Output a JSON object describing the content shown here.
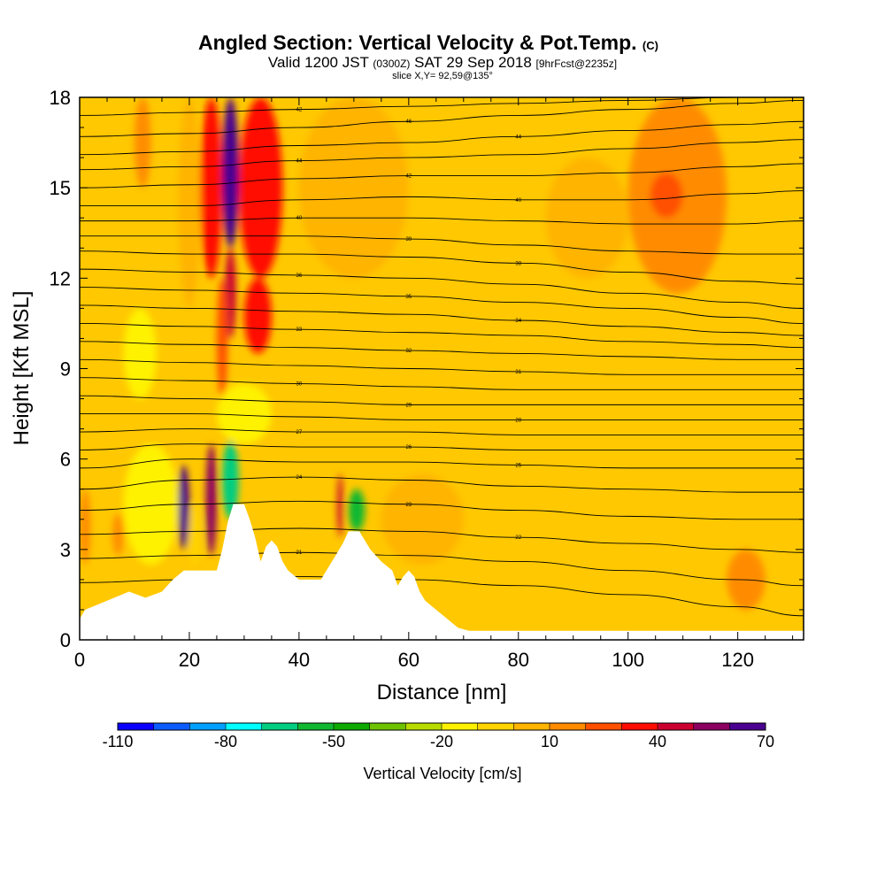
{
  "header": {
    "title": "Angled Section: Vertical Velocity & Pot.Temp.",
    "title_units": "(C)",
    "valid_prefix": "Valid 1200 JST",
    "valid_z": "(0300Z)",
    "valid_date": "SAT 29 Sep 2018",
    "forecast": "[9hrFcst@2235z]",
    "slice": "slice X,Y= 92,59@135°"
  },
  "chart_data": {
    "type": "heatmap",
    "xlabel": "Distance [nm]",
    "ylabel": "Height [Kft MSL]",
    "xlim": [
      0,
      132
    ],
    "ylim": [
      0,
      18
    ],
    "x_ticks": [
      0,
      20,
      40,
      60,
      80,
      100,
      120
    ],
    "y_ticks": [
      0,
      3,
      6,
      9,
      12,
      15,
      18
    ],
    "grid": false,
    "terrain_profile": {
      "x": [
        0,
        1,
        5,
        9,
        12,
        15,
        17,
        19,
        21,
        23,
        25,
        26,
        27,
        28,
        29,
        30,
        31,
        32,
        33,
        34,
        35,
        36,
        37,
        38,
        40,
        42,
        44,
        45,
        46,
        47,
        48,
        49,
        50,
        51,
        52,
        53,
        55,
        57,
        58,
        59,
        60,
        61,
        62,
        63,
        65,
        67,
        69,
        71,
        75,
        132
      ],
      "y": [
        0.7,
        1.0,
        1.3,
        1.6,
        1.4,
        1.6,
        2.0,
        2.3,
        2.3,
        2.3,
        2.3,
        3.0,
        3.9,
        4.5,
        4.5,
        4.5,
        4.0,
        3.4,
        2.6,
        3.1,
        3.3,
        3.1,
        2.6,
        2.3,
        2.0,
        2.0,
        2.0,
        2.3,
        2.6,
        2.9,
        3.2,
        3.6,
        3.6,
        3.6,
        3.3,
        3.0,
        2.6,
        2.3,
        1.8,
        2.1,
        2.3,
        2.1,
        1.6,
        1.3,
        1.0,
        0.7,
        0.4,
        0.3,
        0.3,
        0.3
      ]
    },
    "theta_contours": [
      {
        "label": "42",
        "x": [
          0,
          20,
          40,
          60,
          80,
          100,
          120,
          132
        ],
        "y": [
          17.4,
          17.5,
          17.6,
          17.7,
          17.8,
          17.9,
          18.0,
          18.05
        ]
      },
      {
        "label": "46",
        "x": [
          0,
          20,
          40,
          60,
          80,
          100,
          120,
          132
        ],
        "y": [
          16.7,
          16.8,
          17.0,
          17.2,
          17.4,
          17.6,
          17.8,
          17.9
        ]
      },
      {
        "label": "44",
        "x": [
          0,
          20,
          40,
          60,
          80,
          100,
          120,
          132
        ],
        "y": [
          16.1,
          16.2,
          16.4,
          16.5,
          16.7,
          16.9,
          17.1,
          17.2
        ]
      },
      {
        "label": "44",
        "x": [
          0,
          20,
          40,
          60,
          80,
          100,
          120,
          132
        ],
        "y": [
          15.6,
          15.7,
          15.9,
          16.0,
          16.1,
          16.3,
          16.5,
          16.6
        ]
      },
      {
        "label": "42",
        "x": [
          0,
          20,
          40,
          60,
          80,
          100,
          120,
          132
        ],
        "y": [
          15.0,
          15.1,
          15.3,
          15.4,
          15.4,
          15.5,
          15.7,
          15.8
        ]
      },
      {
        "label": "40",
        "x": [
          0,
          20,
          40,
          60,
          80,
          100,
          120,
          132
        ],
        "y": [
          14.4,
          14.4,
          14.6,
          14.7,
          14.6,
          14.6,
          14.8,
          14.9
        ]
      },
      {
        "label": "40",
        "x": [
          0,
          20,
          40,
          60,
          80,
          100,
          120,
          132
        ],
        "y": [
          13.9,
          13.9,
          14.0,
          14.0,
          13.9,
          13.8,
          13.8,
          13.9
        ]
      },
      {
        "label": "39",
        "x": [
          0,
          20,
          40,
          60,
          80,
          100,
          120,
          132
        ],
        "y": [
          13.4,
          13.4,
          13.4,
          13.3,
          13.1,
          12.9,
          12.8,
          12.8
        ]
      },
      {
        "label": "38",
        "x": [
          0,
          20,
          40,
          60,
          80,
          100,
          120,
          132
        ],
        "y": [
          12.9,
          12.8,
          12.8,
          12.7,
          12.5,
          12.2,
          11.9,
          11.8
        ]
      },
      {
        "label": "36",
        "x": [
          0,
          20,
          40,
          60,
          80,
          100,
          120,
          132
        ],
        "y": [
          12.3,
          12.2,
          12.1,
          12.0,
          11.8,
          11.5,
          11.2,
          11.0
        ]
      },
      {
        "label": "35",
        "x": [
          0,
          20,
          40,
          60,
          80,
          100,
          120,
          132
        ],
        "y": [
          11.7,
          11.6,
          11.5,
          11.4,
          11.2,
          11.0,
          10.7,
          10.5
        ]
      },
      {
        "label": "34",
        "x": [
          0,
          20,
          40,
          60,
          80,
          100,
          120,
          132
        ],
        "y": [
          11.1,
          11.0,
          10.9,
          10.8,
          10.6,
          10.4,
          10.2,
          10.1
        ]
      },
      {
        "label": "33",
        "x": [
          0,
          20,
          40,
          60,
          80,
          100,
          120,
          132
        ],
        "y": [
          10.5,
          10.4,
          10.3,
          10.2,
          10.1,
          9.9,
          9.8,
          9.7
        ]
      },
      {
        "label": "32",
        "x": [
          0,
          20,
          40,
          60,
          80,
          100,
          120,
          132
        ],
        "y": [
          9.9,
          9.8,
          9.7,
          9.6,
          9.5,
          9.4,
          9.3,
          9.3
        ]
      },
      {
        "label": "31",
        "x": [
          0,
          20,
          40,
          60,
          80,
          100,
          120,
          132
        ],
        "y": [
          9.3,
          9.2,
          9.1,
          9.0,
          8.9,
          8.8,
          8.8,
          8.8
        ]
      },
      {
        "label": "30",
        "x": [
          0,
          20,
          40,
          60,
          80,
          100,
          120,
          132
        ],
        "y": [
          8.7,
          8.6,
          8.5,
          8.4,
          8.3,
          8.3,
          8.3,
          8.3
        ]
      },
      {
        "label": "29",
        "x": [
          0,
          20,
          40,
          60,
          80,
          100,
          120,
          132
        ],
        "y": [
          8.1,
          8.0,
          7.9,
          7.8,
          7.8,
          7.8,
          7.8,
          7.8
        ]
      },
      {
        "label": "28",
        "x": [
          0,
          20,
          40,
          60,
          80,
          100,
          120,
          132
        ],
        "y": [
          7.5,
          7.5,
          7.4,
          7.3,
          7.3,
          7.3,
          7.3,
          7.3
        ]
      },
      {
        "label": "27",
        "x": [
          0,
          20,
          40,
          60,
          80,
          100,
          120,
          132
        ],
        "y": [
          6.9,
          7.0,
          6.9,
          6.9,
          6.8,
          6.8,
          6.8,
          6.8
        ]
      },
      {
        "label": "26",
        "x": [
          0,
          20,
          40,
          60,
          80,
          100,
          120,
          132
        ],
        "y": [
          6.3,
          6.5,
          6.4,
          6.4,
          6.3,
          6.3,
          6.3,
          6.3
        ]
      },
      {
        "label": "25",
        "x": [
          0,
          20,
          40,
          60,
          80,
          100,
          120,
          132
        ],
        "y": [
          5.7,
          6.0,
          5.9,
          5.9,
          5.8,
          5.7,
          5.7,
          5.7
        ]
      },
      {
        "label": "24",
        "x": [
          0,
          20,
          40,
          60,
          80,
          100,
          120,
          132
        ],
        "y": [
          5.0,
          5.3,
          5.4,
          5.3,
          5.1,
          5.0,
          4.9,
          4.9
        ]
      },
      {
        "label": "23",
        "x": [
          0,
          20,
          40,
          60,
          80,
          100,
          120,
          132
        ],
        "y": [
          4.3,
          4.5,
          4.6,
          4.5,
          4.3,
          4.1,
          4.0,
          4.0
        ]
      },
      {
        "label": "22",
        "x": [
          0,
          20,
          40,
          60,
          80,
          100,
          120,
          132
        ],
        "y": [
          3.5,
          3.6,
          3.7,
          3.6,
          3.4,
          3.2,
          3.0,
          2.9
        ]
      },
      {
        "label": "21",
        "x": [
          0,
          20,
          40,
          60,
          80,
          100,
          120,
          132
        ],
        "y": [
          2.7,
          2.8,
          2.9,
          2.8,
          2.6,
          2.3,
          2.0,
          1.8
        ]
      },
      {
        "label": "20",
        "x": [
          0,
          20,
          40,
          60,
          80,
          100,
          120,
          132
        ],
        "y": [
          1.9,
          2.0,
          2.1,
          2.0,
          1.8,
          1.5,
          1.1,
          0.8
        ]
      }
    ],
    "velocity_cells": [
      {
        "x": [
          26,
          29
        ],
        "y": [
          13,
          18
        ],
        "value": 65
      },
      {
        "x": [
          26.5,
          28.5
        ],
        "y": [
          10,
          13
        ],
        "value": 45
      },
      {
        "x": [
          22,
          26
        ],
        "y": [
          12,
          18
        ],
        "value": 30
      },
      {
        "x": [
          29,
          37
        ],
        "y": [
          12,
          18
        ],
        "value": 35
      },
      {
        "x": [
          30,
          35
        ],
        "y": [
          9.5,
          12
        ],
        "value": 30
      },
      {
        "x": [
          25,
          27
        ],
        "y": [
          8,
          12
        ],
        "value": 20
      },
      {
        "x": [
          18,
          22
        ],
        "y": [
          11,
          18
        ],
        "value": 5
      },
      {
        "x": [
          10,
          13
        ],
        "y": [
          15,
          18
        ],
        "value": 15
      },
      {
        "x": [
          18,
          20
        ],
        "y": [
          3,
          5.8
        ],
        "value": 60
      },
      {
        "x": [
          23,
          25
        ],
        "y": [
          2.8,
          6.5
        ],
        "value": 50
      },
      {
        "x": [
          26,
          29
        ],
        "y": [
          4.0,
          6.6
        ],
        "value": -70
      },
      {
        "x": [
          20,
          22
        ],
        "y": [
          2.5,
          4.5
        ],
        "value": -10
      },
      {
        "x": [
          47,
          48
        ],
        "y": [
          3.4,
          5.5
        ],
        "value": 45
      },
      {
        "x": [
          49,
          52
        ],
        "y": [
          3.6,
          5.0
        ],
        "value": -60
      },
      {
        "x": [
          8,
          18
        ],
        "y": [
          2.5,
          6.5
        ],
        "value": -15
      },
      {
        "x": [
          25,
          35
        ],
        "y": [
          6.5,
          8.5
        ],
        "value": -15
      },
      {
        "x": [
          8,
          14
        ],
        "y": [
          8,
          11
        ],
        "value": -15
      },
      {
        "x": [
          0,
          2
        ],
        "y": [
          2.5,
          5.0
        ],
        "value": 15
      },
      {
        "x": [
          6,
          8
        ],
        "y": [
          2.8,
          4.2
        ],
        "value": 10
      },
      {
        "x": [
          100,
          118
        ],
        "y": [
          11.5,
          18
        ],
        "value": 15
      },
      {
        "x": [
          104,
          110
        ],
        "y": [
          14,
          15.5
        ],
        "value": 25
      },
      {
        "x": [
          85,
          100
        ],
        "y": [
          12,
          16
        ],
        "value": 5
      },
      {
        "x": [
          40,
          60
        ],
        "y": [
          12,
          18
        ],
        "value": 5
      },
      {
        "x": [
          55,
          70
        ],
        "y": [
          2.5,
          5.5
        ],
        "value": 5
      },
      {
        "x": [
          118,
          125
        ],
        "y": [
          1,
          3
        ],
        "value": 10
      }
    ],
    "colorbar": {
      "label": "Vertical Velocity [cm/s]",
      "tick_labels": [
        "-110",
        "-80",
        "-50",
        "-20",
        "10",
        "40",
        "70"
      ],
      "min": -110,
      "max": 70,
      "step": 10,
      "colors": [
        "#0a00ff",
        "#0b5cff",
        "#00a0ff",
        "#00ffff",
        "#00cd80",
        "#10b830",
        "#0da900",
        "#6ec200",
        "#b8dc00",
        "#fff200",
        "#ffd400",
        "#ffb400",
        "#ff8c00",
        "#ff5000",
        "#ff0d00",
        "#cc0030",
        "#8c0060",
        "#4a0090"
      ]
    }
  }
}
